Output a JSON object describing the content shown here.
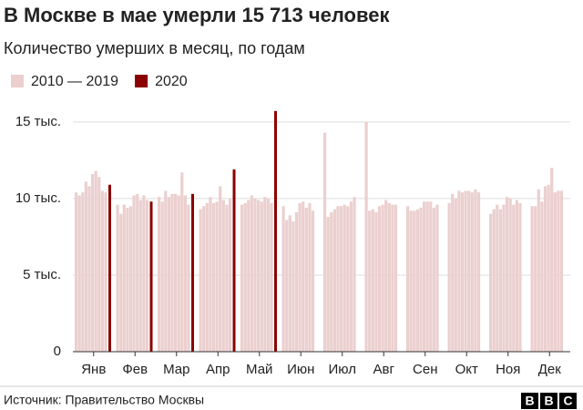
{
  "chart_data": {
    "type": "bar",
    "title": "В Москве в мае умерли 15 713 человек",
    "subtitle": "Количество умерших в месяц, по годам",
    "categories": [
      "Янв",
      "Фев",
      "Мар",
      "Апр",
      "Май",
      "Июн",
      "Июл",
      "Авг",
      "Сен",
      "Окт",
      "Ноя",
      "Дек"
    ],
    "series": [
      {
        "name": "2010 — 2019",
        "color": "#ebcfcf",
        "values": [
          [
            10400,
            10200,
            10400,
            11100,
            10800,
            11600,
            11800,
            11400,
            10500,
            10400
          ],
          [
            9600,
            9000,
            9600,
            9400,
            9500,
            10200,
            10300,
            9900,
            10200,
            9900
          ],
          [
            10100,
            9800,
            10500,
            10100,
            10300,
            10300,
            10200,
            11700,
            10200,
            9600
          ],
          [
            9300,
            9500,
            9700,
            10100,
            9700,
            9800,
            10800,
            9900,
            9600,
            10000
          ],
          [
            9600,
            9700,
            9900,
            10200,
            10000,
            9900,
            9800,
            10100,
            10000,
            9700
          ],
          [
            9500,
            8600,
            8900,
            8500,
            9100,
            9700,
            9800,
            9400,
            9700,
            9200
          ],
          [
            14300,
            8800,
            9100,
            9300,
            9500,
            9500,
            9600,
            9500,
            9800,
            10100
          ],
          [
            15000,
            9200,
            9300,
            9100,
            9500,
            9600,
            9900,
            9700,
            9600,
            9600
          ],
          [
            9500,
            9200,
            9200,
            9300,
            9400,
            9800,
            9800,
            9800,
            9400,
            9600
          ],
          [
            9700,
            10300,
            10000,
            10500,
            10400,
            10500,
            10500,
            10400,
            10600,
            10400
          ],
          [
            9000,
            9300,
            9600,
            9300,
            9600,
            10100,
            10000,
            9600,
            9900,
            9700
          ],
          [
            9500,
            9500,
            10600,
            9800,
            10800,
            10900,
            12000,
            10400,
            10500,
            10500
          ]
        ]
      },
      {
        "name": "2020",
        "color": "#8b0000",
        "values": [
          10900,
          9800,
          10300,
          11900,
          15713,
          null,
          null,
          null,
          null,
          null,
          null,
          null
        ]
      }
    ],
    "ylim": [
      0,
      16000
    ],
    "yticks": [
      0,
      {
        "value": 5000,
        "label": "5 тыс."
      },
      {
        "value": 10000,
        "label": "10 тыс."
      },
      {
        "value": 15000,
        "label": "15 тыс."
      }
    ],
    "grid": true,
    "source": "Источник: Правительство Москвы",
    "logo": [
      "B",
      "B",
      "C"
    ]
  }
}
